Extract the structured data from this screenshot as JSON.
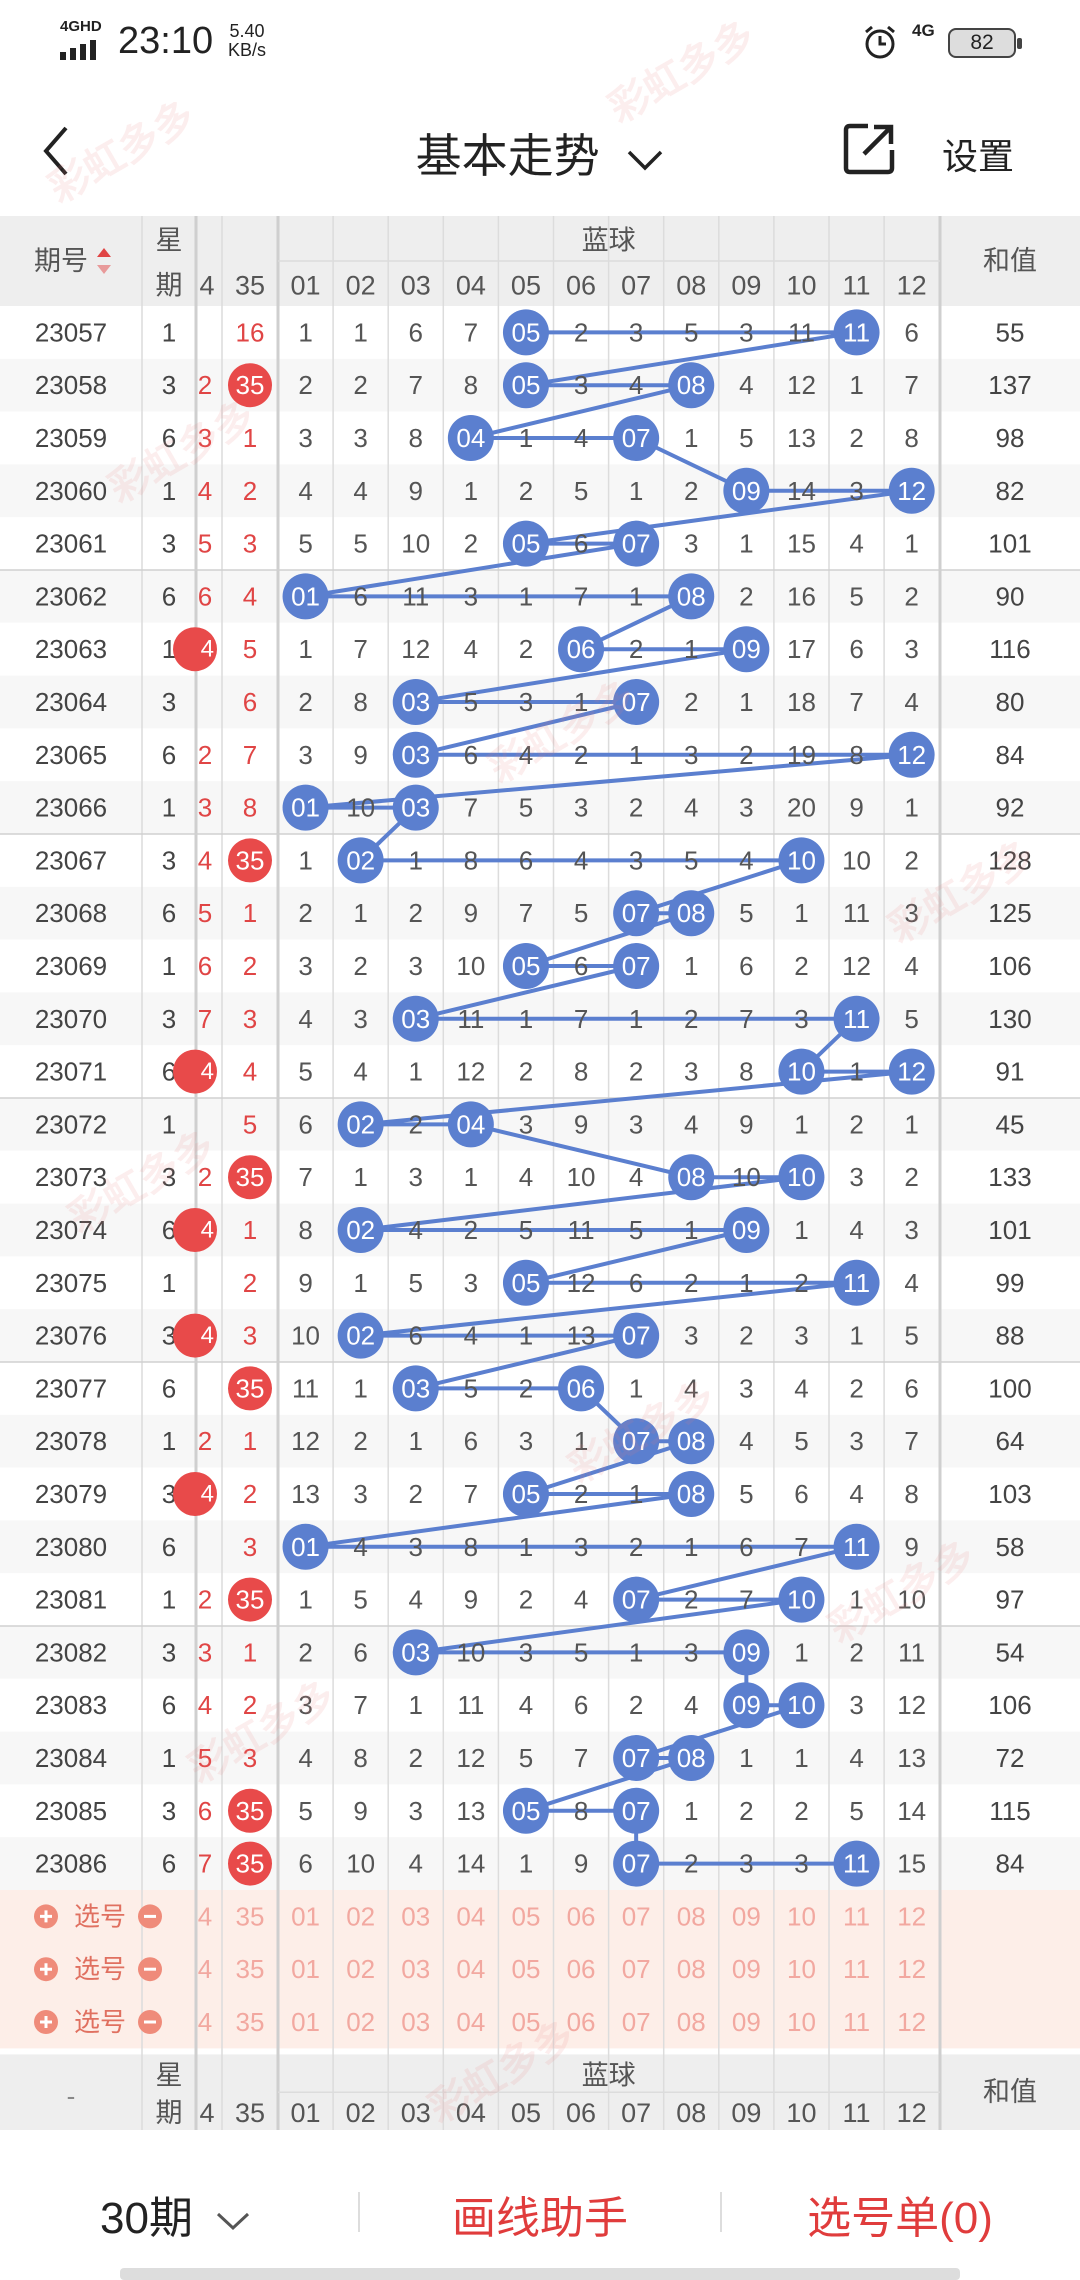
{
  "status": {
    "network": "4GHD",
    "time": "23:10",
    "speed_value": "5.40",
    "speed_unit": "KB/s",
    "network2": "4G",
    "battery": "82"
  },
  "nav": {
    "title": "基本走势",
    "settings_label": "设置",
    "icons": [
      "back-arrow-icon",
      "chevron-down-icon",
      "share-icon"
    ]
  },
  "table": {
    "col_period": "期号",
    "col_week_top": "星",
    "col_week_bottom": "期",
    "blue_group": "蓝球",
    "col_sum": "和值",
    "red_cols": [
      "4",
      "35"
    ],
    "blue_cols": [
      "01",
      "02",
      "03",
      "04",
      "05",
      "06",
      "07",
      "08",
      "09",
      "10",
      "11",
      "12"
    ],
    "rows": [
      {
        "p": "23057",
        "w": "1",
        "r4": "",
        "r35": "16",
        "b": [
          1,
          1,
          6,
          7,
          "05",
          2,
          3,
          5,
          3,
          11,
          "11",
          6
        ],
        "s": "55"
      },
      {
        "p": "23058",
        "w": "3",
        "r4": "2",
        "r35": "35*",
        "b": [
          2,
          2,
          7,
          8,
          "05",
          3,
          4,
          "08",
          4,
          12,
          1,
          7
        ],
        "s": "137"
      },
      {
        "p": "23059",
        "w": "6",
        "r4": "3",
        "r35": "1",
        "b": [
          3,
          3,
          8,
          "04",
          1,
          4,
          "07",
          1,
          5,
          13,
          2,
          8
        ],
        "s": "98"
      },
      {
        "p": "23060",
        "w": "1",
        "r4": "4",
        "r35": "2",
        "b": [
          4,
          4,
          9,
          1,
          2,
          5,
          1,
          2,
          "09",
          14,
          3,
          "12"
        ],
        "s": "82"
      },
      {
        "p": "23061",
        "w": "3",
        "r4": "5",
        "r35": "3",
        "b": [
          5,
          5,
          10,
          2,
          "05",
          6,
          "07",
          3,
          1,
          15,
          4,
          1
        ],
        "s": "101"
      },
      {
        "p": "23062",
        "w": "6",
        "r4": "6",
        "r35": "4",
        "b": [
          "01",
          6,
          11,
          3,
          1,
          7,
          1,
          "08",
          2,
          16,
          5,
          2
        ],
        "s": "90"
      },
      {
        "p": "23063",
        "w": "1",
        "r4": "4*",
        "r35": "5",
        "b": [
          1,
          7,
          12,
          4,
          2,
          "06",
          2,
          1,
          "09",
          17,
          6,
          3
        ],
        "s": "116"
      },
      {
        "p": "23064",
        "w": "3",
        "r4": "",
        "r35": "6",
        "b": [
          2,
          8,
          "03",
          5,
          3,
          1,
          "07",
          2,
          1,
          18,
          7,
          4
        ],
        "s": "80"
      },
      {
        "p": "23065",
        "w": "6",
        "r4": "2",
        "r35": "7",
        "b": [
          3,
          9,
          "03",
          6,
          4,
          2,
          1,
          3,
          2,
          19,
          8,
          "12"
        ],
        "s": "84"
      },
      {
        "p": "23066",
        "w": "1",
        "r4": "3",
        "r35": "8",
        "b": [
          "01",
          10,
          "03",
          7,
          5,
          3,
          2,
          4,
          3,
          20,
          9,
          1
        ],
        "s": "92"
      },
      {
        "p": "23067",
        "w": "3",
        "r4": "4",
        "r35": "35*",
        "b": [
          1,
          "02",
          1,
          8,
          6,
          4,
          3,
          5,
          4,
          "10",
          10,
          2
        ],
        "s": "128"
      },
      {
        "p": "23068",
        "w": "6",
        "r4": "5",
        "r35": "1",
        "b": [
          2,
          1,
          2,
          9,
          7,
          5,
          "07",
          "08",
          5,
          1,
          11,
          3
        ],
        "s": "125"
      },
      {
        "p": "23069",
        "w": "1",
        "r4": "6",
        "r35": "2",
        "b": [
          3,
          2,
          3,
          10,
          "05",
          6,
          "07",
          1,
          6,
          2,
          12,
          4
        ],
        "s": "106"
      },
      {
        "p": "23070",
        "w": "3",
        "r4": "7",
        "r35": "3",
        "b": [
          4,
          3,
          "03",
          11,
          1,
          7,
          1,
          2,
          7,
          3,
          "11",
          5
        ],
        "s": "130"
      },
      {
        "p": "23071",
        "w": "6",
        "r4": "4*",
        "r35": "4",
        "b": [
          5,
          4,
          1,
          12,
          2,
          8,
          2,
          3,
          8,
          "10",
          1,
          "12"
        ],
        "s": "91"
      },
      {
        "p": "23072",
        "w": "1",
        "r4": "",
        "r35": "5",
        "b": [
          6,
          "02",
          2,
          "04",
          3,
          9,
          3,
          4,
          9,
          1,
          2,
          1
        ],
        "s": "45"
      },
      {
        "p": "23073",
        "w": "3",
        "r4": "2",
        "r35": "35*",
        "b": [
          7,
          1,
          3,
          1,
          4,
          10,
          4,
          "08",
          10,
          "10",
          3,
          2
        ],
        "s": "133"
      },
      {
        "p": "23074",
        "w": "6",
        "r4": "4*",
        "r35": "1",
        "b": [
          8,
          "02",
          4,
          2,
          5,
          11,
          5,
          1,
          "09",
          1,
          4,
          3
        ],
        "s": "101"
      },
      {
        "p": "23075",
        "w": "1",
        "r4": "",
        "r35": "2",
        "b": [
          9,
          1,
          5,
          3,
          "05",
          12,
          6,
          2,
          1,
          2,
          "11",
          4
        ],
        "s": "99"
      },
      {
        "p": "23076",
        "w": "3",
        "r4": "4*",
        "r35": "3",
        "b": [
          10,
          "02",
          6,
          4,
          1,
          13,
          "07",
          3,
          2,
          3,
          1,
          5
        ],
        "s": "88"
      },
      {
        "p": "23077",
        "w": "6",
        "r4": "",
        "r35": "35*",
        "b": [
          11,
          1,
          "03",
          5,
          2,
          "06",
          1,
          4,
          3,
          4,
          2,
          6
        ],
        "s": "100"
      },
      {
        "p": "23078",
        "w": "1",
        "r4": "2",
        "r35": "1",
        "b": [
          12,
          2,
          1,
          6,
          3,
          1,
          "07",
          "08",
          4,
          5,
          3,
          7
        ],
        "s": "64"
      },
      {
        "p": "23079",
        "w": "3",
        "r4": "4*",
        "r35": "2",
        "b": [
          13,
          3,
          2,
          7,
          "05",
          2,
          1,
          "08",
          5,
          6,
          4,
          8
        ],
        "s": "103"
      },
      {
        "p": "23080",
        "w": "6",
        "r4": "",
        "r35": "3",
        "b": [
          "01",
          4,
          3,
          8,
          1,
          3,
          2,
          1,
          6,
          7,
          "11",
          9
        ],
        "s": "58"
      },
      {
        "p": "23081",
        "w": "1",
        "r4": "2",
        "r35": "35*",
        "b": [
          1,
          5,
          4,
          9,
          2,
          4,
          "07",
          2,
          7,
          "10",
          1,
          10
        ],
        "s": "97"
      },
      {
        "p": "23082",
        "w": "3",
        "r4": "3",
        "r35": "1",
        "b": [
          2,
          6,
          "03",
          10,
          3,
          5,
          1,
          3,
          "09",
          1,
          2,
          11
        ],
        "s": "54"
      },
      {
        "p": "23083",
        "w": "6",
        "r4": "4",
        "r35": "2",
        "b": [
          3,
          7,
          1,
          11,
          4,
          6,
          2,
          4,
          "09",
          "10",
          3,
          12
        ],
        "s": "106"
      },
      {
        "p": "23084",
        "w": "1",
        "r4": "5",
        "r35": "3",
        "b": [
          4,
          8,
          2,
          12,
          5,
          7,
          "07",
          "08",
          1,
          1,
          4,
          13
        ],
        "s": "72"
      },
      {
        "p": "23085",
        "w": "3",
        "r4": "6",
        "r35": "35*",
        "b": [
          5,
          9,
          3,
          13,
          "05",
          8,
          "07",
          1,
          2,
          2,
          5,
          14
        ],
        "s": "115"
      },
      {
        "p": "23086",
        "w": "6",
        "r4": "7",
        "r35": "35*",
        "b": [
          6,
          10,
          4,
          14,
          1,
          9,
          "07",
          2,
          3,
          3,
          "11",
          15
        ],
        "s": "84"
      }
    ],
    "pick_label": "选号",
    "pick_rows": 3,
    "footer_dash": "-"
  },
  "bottom": {
    "periods": "30期",
    "draw_helper": "画线助手",
    "cart": "选号单(0)"
  },
  "colors": {
    "blue_ball": "#5b7fcf",
    "red_ball": "#e84a4a",
    "red_text": "#e04545",
    "line": "#5b7fcf",
    "pick_bg": "#fdeee8"
  }
}
